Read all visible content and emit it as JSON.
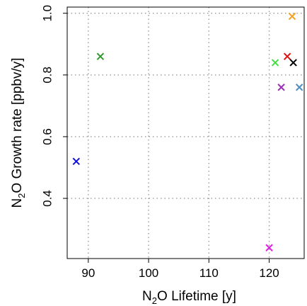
{
  "chart_data": {
    "type": "scatter",
    "title": "",
    "xlabel": {
      "pre": "N",
      "sub": "2",
      "post": "O Lifetime [y]"
    },
    "ylabel": {
      "pre": "N",
      "sub": "2",
      "post": "O Growth rate [ppbv/y]"
    },
    "xlim": [
      86.5,
      125.8
    ],
    "ylim": [
      0.205,
      1.02
    ],
    "xticks": [
      90,
      100,
      110,
      120
    ],
    "yticks": [
      0.4,
      0.6,
      0.8,
      1.0
    ],
    "ytick_labels": [
      "0.4",
      "0.6",
      "0.8",
      "1.0"
    ],
    "grid": true,
    "marker": "x",
    "points": [
      {
        "x": 88,
        "y": 0.52,
        "color": "#1010d8"
      },
      {
        "x": 92,
        "y": 0.86,
        "color": "#2e9a2e"
      },
      {
        "x": 120,
        "y": 0.24,
        "color": "#e020e0"
      },
      {
        "x": 121,
        "y": 0.84,
        "color": "#44dd44"
      },
      {
        "x": 122,
        "y": 0.76,
        "color": "#9a30b8"
      },
      {
        "x": 123,
        "y": 0.86,
        "color": "#e01010"
      },
      {
        "x": 123.8,
        "y": 0.99,
        "color": "#f5a020"
      },
      {
        "x": 124,
        "y": 0.84,
        "color": "#000000"
      },
      {
        "x": 125,
        "y": 0.76,
        "color": "#4d8fc2"
      }
    ]
  }
}
